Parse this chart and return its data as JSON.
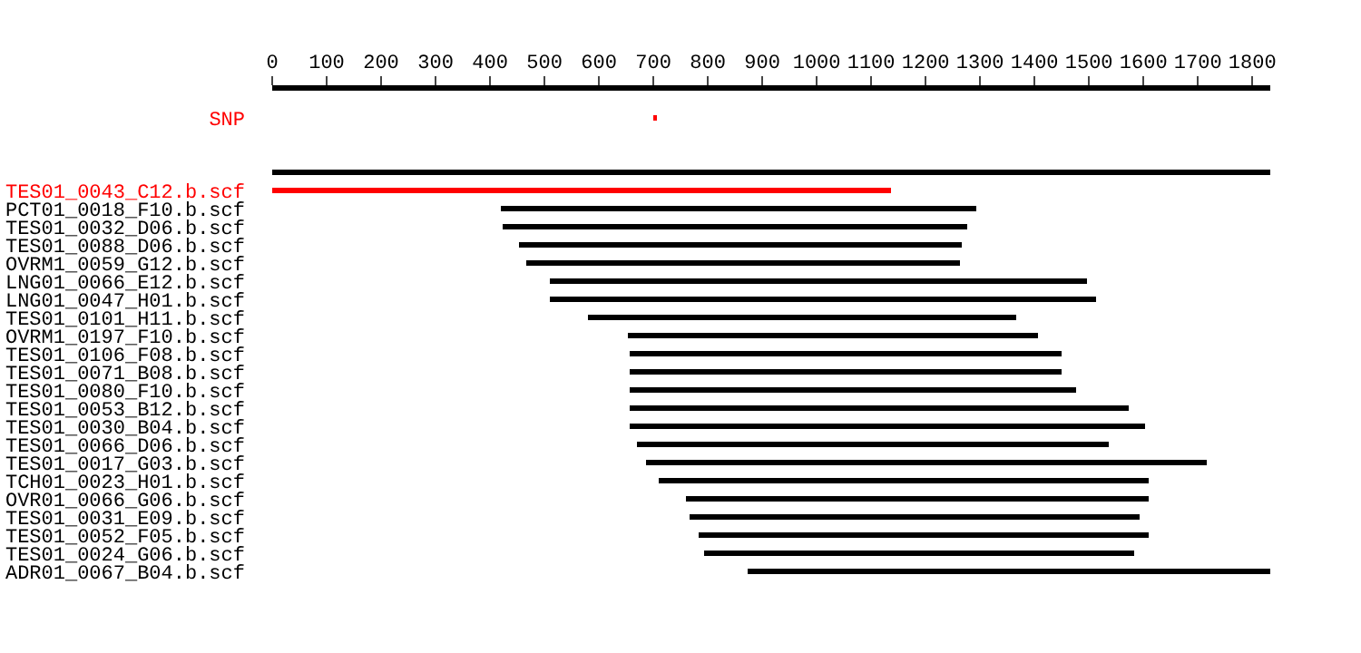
{
  "chart_data": {
    "type": "bar",
    "orientation": "horizontal",
    "categories": [
      "SNP",
      null,
      null,
      null,
      "TES01_0043_C12.b.scf",
      "PCT01_0018_F10.b.scf",
      "TES01_0032_D06.b.scf",
      "TES01_0088_D06.b.scf",
      "OVRM1_0059_G12.b.scf",
      "LNG01_0066_E12.b.scf",
      "LNG01_0047_H01.b.scf",
      "TES01_0101_H11.b.scf",
      "OVRM1_0197_F10.b.scf",
      "TES01_0106_F08.b.scf",
      "TES01_0071_B08.b.scf",
      "TES01_0080_F10.b.scf",
      "TES01_0053_B12.b.scf",
      "TES01_0030_B04.b.scf",
      "TES01_0066_D06.b.scf",
      "TES01_0017_G03.b.scf",
      "TCH01_0023_H01.b.scf",
      "OVR01_0066_G06.b.scf",
      "TES01_0031_E09.b.scf",
      "TES01_0052_F05.b.scf",
      "TES01_0024_G06.b.scf",
      "ADR01_0067_B04.b.scf"
    ],
    "base": [
      700,
      null,
      null,
      0,
      0,
      420,
      423,
      453,
      467,
      510,
      510,
      580,
      653,
      657,
      657,
      657,
      657,
      657,
      670,
      687,
      710,
      760,
      767,
      783,
      793,
      873
    ],
    "values": [
      7,
      null,
      null,
      1833,
      1137,
      873,
      854,
      814,
      796,
      987,
      1003,
      787,
      754,
      793,
      793,
      820,
      916,
      946,
      867,
      1030,
      900,
      850,
      826,
      827,
      790,
      960
    ],
    "colors": [
      "#ff0000",
      "#000000",
      "#000000",
      "#000000",
      "#ff0000",
      "#000000",
      "#000000",
      "#000000",
      "#000000",
      "#000000",
      "#000000",
      "#000000",
      "#000000",
      "#000000",
      "#000000",
      "#000000",
      "#000000",
      "#000000",
      "#000000",
      "#000000",
      "#000000",
      "#000000",
      "#000000",
      "#000000",
      "#000000",
      "#000000"
    ],
    "xlim": [
      0,
      1833
    ],
    "xticks": [
      0,
      100,
      200,
      300,
      400,
      500,
      600,
      700,
      800,
      900,
      1000,
      1100,
      1200,
      1300,
      1400,
      1500,
      1600,
      1700,
      1800
    ],
    "grid": false,
    "legend": false
  }
}
